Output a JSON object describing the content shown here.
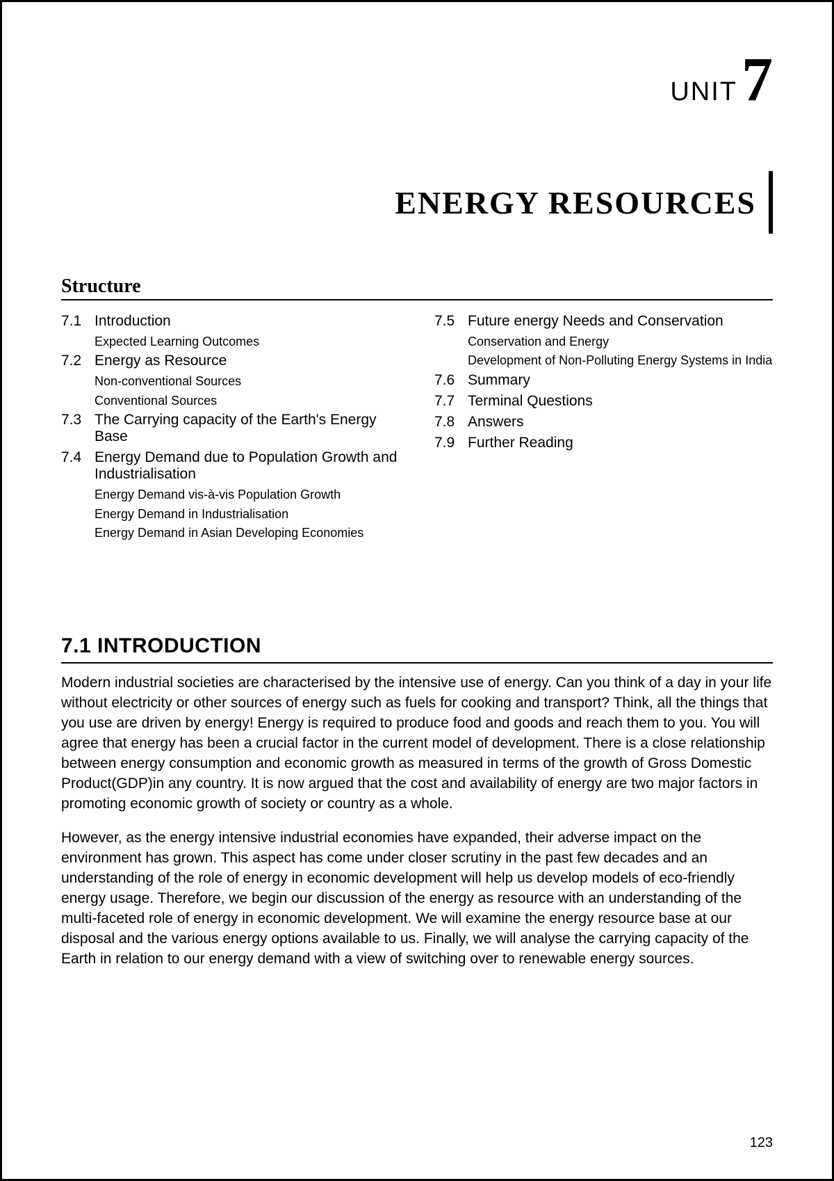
{
  "unit": {
    "label": "UNIT",
    "number": "7"
  },
  "title": "ENERGY RESOURCES",
  "structure_heading": "Structure",
  "toc_left": [
    {
      "num": "7.1",
      "text": "Introduction",
      "subs": [
        "Expected Learning Outcomes"
      ]
    },
    {
      "num": "7.2",
      "text": "Energy as Resource",
      "subs": [
        "Non-conventional Sources",
        "Conventional Sources"
      ]
    },
    {
      "num": "7.3",
      "text": "The Carrying capacity of the Earth's Energy Base",
      "subs": []
    },
    {
      "num": "7.4",
      "text": "Energy Demand due to Population Growth and Industrialisation",
      "subs": [
        "Energy Demand vis-à-vis Population Growth",
        "Energy Demand in Industrialisation",
        "Energy Demand in Asian Developing Economies"
      ]
    }
  ],
  "toc_right": [
    {
      "num": "7.5",
      "text": "Future energy Needs and Conservation",
      "subs": [
        "Conservation and Energy",
        "Development of Non-Polluting Energy Systems in India"
      ]
    },
    {
      "num": "7.6",
      "text": "Summary",
      "subs": []
    },
    {
      "num": "7.7",
      "text": "Terminal Questions",
      "subs": []
    },
    {
      "num": "7.8",
      "text": "Answers",
      "subs": []
    },
    {
      "num": "7.9",
      "text": "Further Reading",
      "subs": []
    }
  ],
  "section_heading": "7.1  INTRODUCTION",
  "paragraphs": [
    "Modern industrial societies are characterised by the intensive use of energy. Can you think of a day in your life without electricity or other sources of energy such as fuels for cooking and transport? Think, all the things that you use are driven by energy! Energy is required to produce food and goods and reach them to you. You will agree that energy has been a crucial factor in the current model of development. There is a close relationship between energy consumption and economic growth as measured in terms of the growth of Gross Domestic Product(GDP)in any country. It is now argued that the cost and availability of energy are two major factors in promoting economic growth of society or country as a whole.",
    "However, as the energy intensive industrial economies have expanded, their adverse impact on the environment has grown. This aspect has come under closer scrutiny in the past few decades and an understanding of the role of energy in economic development will help us develop models of eco-friendly energy usage. Therefore, we begin our discussion of the energy as resource with an understanding of the multi-faceted role of energy in economic development. We will examine the energy resource base at our disposal and the various energy options available to us. Finally, we will analyse the carrying capacity of the Earth in relation to our energy demand with a view of switching over to renewable energy sources."
  ],
  "page_number": "123"
}
